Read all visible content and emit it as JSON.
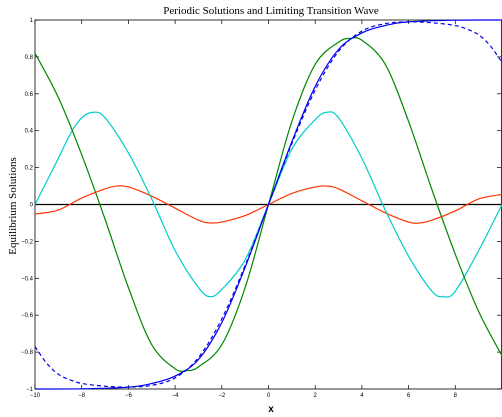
{
  "chart_data": {
    "type": "line",
    "title": "Periodic Solutions and Limiting Transition Wave",
    "xlabel": "x",
    "ylabel": "Equilibrium Solutions",
    "xlim": [
      -10,
      10
    ],
    "ylim": [
      -1,
      1
    ],
    "x_ticks": [
      -10,
      -8,
      -6,
      -4,
      -2,
      0,
      2,
      4,
      6,
      8
    ],
    "y_ticks": [
      -1,
      -0.8,
      -0.6,
      -0.4,
      -0.2,
      0,
      0.2,
      0.4,
      0.6,
      0.8,
      1
    ],
    "x_tick_labels": [
      "−10",
      "−8",
      "−6",
      "−4",
      "−2",
      "0",
      "2",
      "4",
      "6",
      "8"
    ],
    "y_tick_labels": [
      "−1",
      "−0.8",
      "−0.6",
      "−0.4",
      "−0.2",
      "0",
      "0.2",
      "0.4",
      "0.6",
      "0.8",
      "1"
    ],
    "grid": false,
    "series": [
      {
        "color": "#000000",
        "style": "solid",
        "x": [
          -10,
          10
        ],
        "y": [
          0,
          0
        ]
      },
      {
        "color": "#ff3300",
        "style": "solid",
        "x": [
          -10,
          -9,
          -8,
          -7,
          -6.5,
          -6,
          -5,
          -4,
          -3,
          -2.5,
          -2,
          -1,
          0,
          1,
          2,
          2.5,
          3,
          4,
          5,
          6,
          6.5,
          7,
          8,
          9,
          10
        ],
        "y": [
          -0.052,
          -0.03,
          0.035,
          0.085,
          0.1,
          0.095,
          0.045,
          -0.02,
          -0.085,
          -0.1,
          -0.095,
          -0.06,
          0,
          0.06,
          0.095,
          0.1,
          0.085,
          0.02,
          -0.045,
          -0.095,
          -0.1,
          -0.085,
          -0.035,
          0.03,
          0.055
        ]
      },
      {
        "color": "#00cccc",
        "style": "solid",
        "x": [
          -10,
          -9,
          -8.5,
          -8,
          -7.5,
          -7,
          -6,
          -5,
          -4,
          -3,
          -2.5,
          -2,
          -1,
          0,
          1,
          2,
          2.5,
          3,
          4,
          5,
          6,
          7,
          7.5,
          8,
          9,
          10
        ],
        "y": [
          0,
          0.25,
          0.38,
          0.47,
          0.5,
          0.47,
          0.28,
          0.03,
          -0.25,
          -0.45,
          -0.5,
          -0.46,
          -0.3,
          0,
          0.3,
          0.46,
          0.5,
          0.47,
          0.25,
          -0.03,
          -0.28,
          -0.47,
          -0.5,
          -0.47,
          -0.25,
          0
        ]
      },
      {
        "color": "#008800",
        "style": "solid",
        "x": [
          -10,
          -9,
          -8,
          -7,
          -6,
          -5,
          -4,
          -3.5,
          -3,
          -2,
          -1,
          0,
          1,
          2,
          3,
          3.5,
          4,
          5,
          6,
          7,
          8,
          9,
          10
        ],
        "y": [
          0.82,
          0.58,
          0.27,
          -0.08,
          -0.45,
          -0.76,
          -0.89,
          -0.9,
          -0.88,
          -0.76,
          -0.45,
          0,
          0.45,
          0.76,
          0.88,
          0.9,
          0.89,
          0.76,
          0.45,
          0.08,
          -0.27,
          -0.58,
          -0.82
        ]
      },
      {
        "color": "#0000ee",
        "style": "dashed",
        "x": [
          -10,
          -9.5,
          -9,
          -8.5,
          -8,
          -7,
          -6,
          -5,
          -4,
          -3,
          -2,
          -1,
          0,
          1,
          2,
          3,
          4,
          5,
          6,
          7,
          8,
          8.5,
          9,
          9.5,
          10
        ],
        "y": [
          -0.77,
          -0.86,
          -0.92,
          -0.95,
          -0.97,
          -0.985,
          -0.99,
          -0.98,
          -0.94,
          -0.83,
          -0.62,
          -0.33,
          0,
          0.33,
          0.62,
          0.83,
          0.94,
          0.98,
          0.99,
          0.985,
          0.97,
          0.95,
          0.92,
          0.86,
          0.77
        ]
      },
      {
        "color": "#0000ee",
        "style": "solid",
        "x": [
          -10,
          -8,
          -6,
          -5,
          -4,
          -3,
          -2,
          -1,
          0,
          1,
          2,
          3,
          4,
          5,
          6,
          8,
          10
        ],
        "y": [
          -1.0,
          -0.999,
          -0.99,
          -0.97,
          -0.93,
          -0.84,
          -0.64,
          -0.34,
          0,
          0.34,
          0.64,
          0.84,
          0.93,
          0.97,
          0.99,
          0.999,
          1.0
        ]
      }
    ]
  }
}
